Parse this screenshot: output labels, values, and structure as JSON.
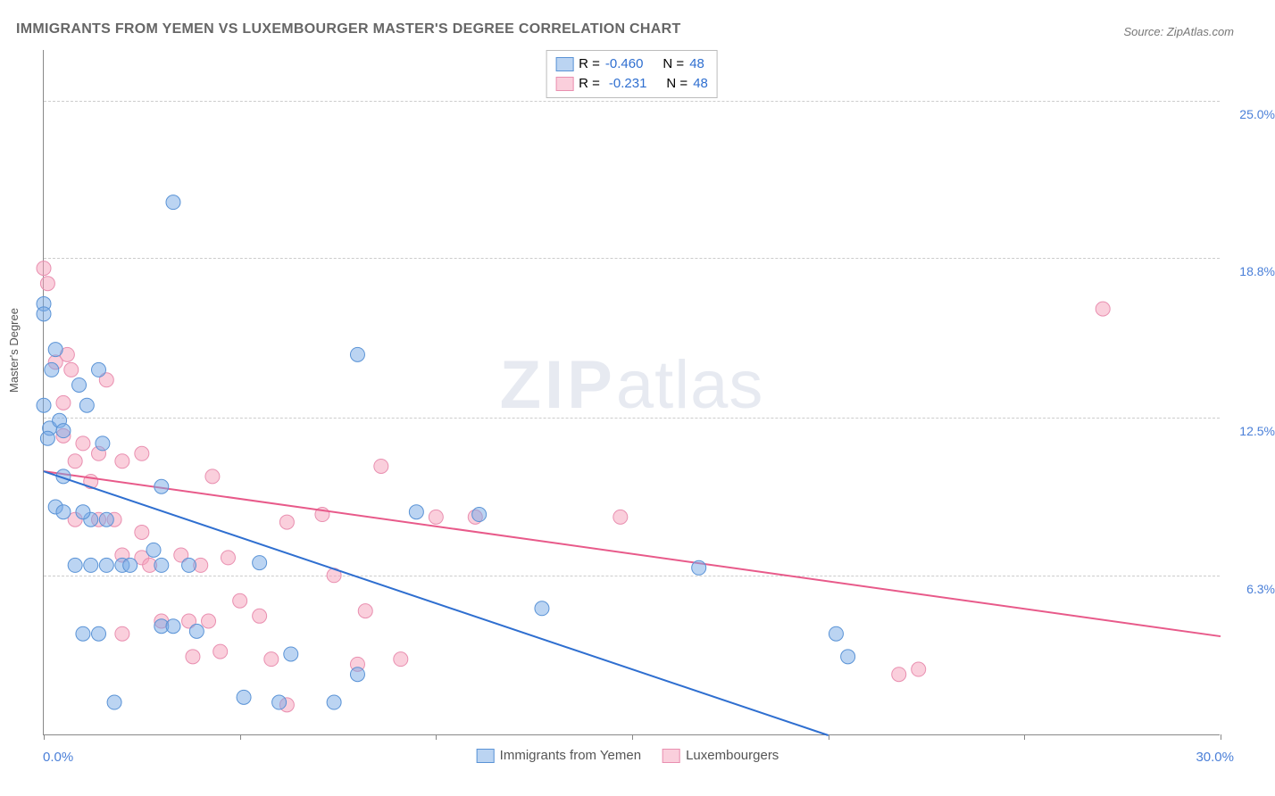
{
  "title": "IMMIGRANTS FROM YEMEN VS LUXEMBOURGER MASTER'S DEGREE CORRELATION CHART",
  "source": "Source: ZipAtlas.com",
  "y_axis_label": "Master's Degree",
  "x_axis": {
    "min": 0,
    "max": 30,
    "left_label": "0.0%",
    "right_label": "30.0%"
  },
  "y_axis": {
    "min": 0,
    "max": 27,
    "ticks": [
      {
        "value": 6.3,
        "label": "6.3%"
      },
      {
        "value": 12.5,
        "label": "12.5%"
      },
      {
        "value": 18.8,
        "label": "18.8%"
      },
      {
        "value": 25.0,
        "label": "25.0%"
      }
    ]
  },
  "x_tick_positions": [
    0,
    5,
    10,
    15,
    20,
    25,
    30
  ],
  "grid_color": "#cccccc",
  "axis_color": "#888888",
  "tick_label_color": "#4a7fd8",
  "point_radius": 8,
  "series": {
    "a": {
      "name": "Immigrants from Yemen",
      "fill": "rgba(120,170,230,0.5)",
      "stroke": "#5a93d6",
      "stats": {
        "R": "-0.460",
        "N": "48"
      },
      "trend": {
        "x1": 0,
        "y1": 10.4,
        "x2": 20.0,
        "y2": 0.0,
        "color": "#2f6fd0",
        "width": 2
      },
      "points": [
        [
          0.0,
          17.0
        ],
        [
          0.0,
          16.6
        ],
        [
          0.0,
          13.0
        ],
        [
          0.15,
          12.1
        ],
        [
          0.1,
          11.7
        ],
        [
          0.3,
          15.2
        ],
        [
          0.2,
          14.4
        ],
        [
          0.4,
          12.4
        ],
        [
          0.5,
          12.0
        ],
        [
          0.5,
          10.2
        ],
        [
          0.3,
          9.0
        ],
        [
          0.5,
          8.8
        ],
        [
          0.9,
          13.8
        ],
        [
          1.1,
          13.0
        ],
        [
          1.4,
          14.4
        ],
        [
          1.5,
          11.5
        ],
        [
          1.2,
          8.5
        ],
        [
          1.6,
          8.5
        ],
        [
          1.0,
          8.8
        ],
        [
          0.8,
          6.7
        ],
        [
          1.2,
          6.7
        ],
        [
          1.6,
          6.7
        ],
        [
          2.0,
          6.7
        ],
        [
          1.0,
          4.0
        ],
        [
          1.4,
          4.0
        ],
        [
          2.2,
          6.7
        ],
        [
          1.8,
          1.3
        ],
        [
          2.8,
          7.3
        ],
        [
          3.0,
          9.8
        ],
        [
          3.0,
          6.7
        ],
        [
          3.7,
          6.7
        ],
        [
          3.0,
          4.3
        ],
        [
          3.3,
          4.3
        ],
        [
          3.9,
          4.1
        ],
        [
          3.3,
          21.0
        ],
        [
          5.1,
          1.5
        ],
        [
          5.5,
          6.8
        ],
        [
          6.0,
          1.3
        ],
        [
          6.3,
          3.2
        ],
        [
          7.4,
          1.3
        ],
        [
          8.0,
          2.4
        ],
        [
          8.0,
          15.0
        ],
        [
          9.5,
          8.8
        ],
        [
          11.1,
          8.7
        ],
        [
          12.7,
          5.0
        ],
        [
          16.7,
          6.6
        ],
        [
          20.2,
          4.0
        ],
        [
          20.5,
          3.1
        ]
      ]
    },
    "b": {
      "name": "Luxembourgers",
      "fill": "rgba(245,160,185,0.5)",
      "stroke": "#e98fb0",
      "stats": {
        "R": "-0.231",
        "N": "48"
      },
      "trend": {
        "x1": 0,
        "y1": 10.4,
        "x2": 30.0,
        "y2": 3.9,
        "color": "#e85a8a",
        "width": 2
      },
      "points": [
        [
          0.0,
          18.4
        ],
        [
          0.1,
          17.8
        ],
        [
          0.3,
          14.7
        ],
        [
          0.5,
          13.1
        ],
        [
          0.5,
          11.8
        ],
        [
          0.6,
          15.0
        ],
        [
          0.7,
          14.4
        ],
        [
          0.8,
          10.8
        ],
        [
          0.8,
          8.5
        ],
        [
          1.0,
          11.5
        ],
        [
          1.2,
          10.0
        ],
        [
          1.4,
          11.1
        ],
        [
          1.4,
          8.5
        ],
        [
          1.6,
          14.0
        ],
        [
          1.8,
          8.5
        ],
        [
          2.0,
          10.8
        ],
        [
          2.0,
          7.1
        ],
        [
          2.0,
          4.0
        ],
        [
          2.5,
          8.0
        ],
        [
          2.5,
          7.0
        ],
        [
          2.5,
          11.1
        ],
        [
          2.7,
          6.7
        ],
        [
          3.0,
          4.5
        ],
        [
          3.5,
          7.1
        ],
        [
          3.7,
          4.5
        ],
        [
          3.8,
          3.1
        ],
        [
          4.0,
          6.7
        ],
        [
          4.2,
          4.5
        ],
        [
          4.3,
          10.2
        ],
        [
          4.5,
          3.3
        ],
        [
          4.7,
          7.0
        ],
        [
          5.0,
          5.3
        ],
        [
          5.5,
          4.7
        ],
        [
          5.8,
          3.0
        ],
        [
          6.2,
          8.4
        ],
        [
          6.2,
          1.2
        ],
        [
          7.1,
          8.7
        ],
        [
          7.4,
          6.3
        ],
        [
          8.2,
          4.9
        ],
        [
          8.0,
          2.8
        ],
        [
          8.6,
          10.6
        ],
        [
          9.1,
          3.0
        ],
        [
          10.0,
          8.6
        ],
        [
          11.0,
          8.6
        ],
        [
          14.7,
          8.6
        ],
        [
          21.8,
          2.4
        ],
        [
          22.3,
          2.6
        ],
        [
          27.0,
          16.8
        ]
      ]
    }
  },
  "legend_bottom": [
    {
      "key": "a",
      "label": "Immigrants from Yemen"
    },
    {
      "key": "b",
      "label": "Luxembourgers"
    }
  ],
  "watermark": {
    "bold": "ZIP",
    "rest": "atlas"
  }
}
